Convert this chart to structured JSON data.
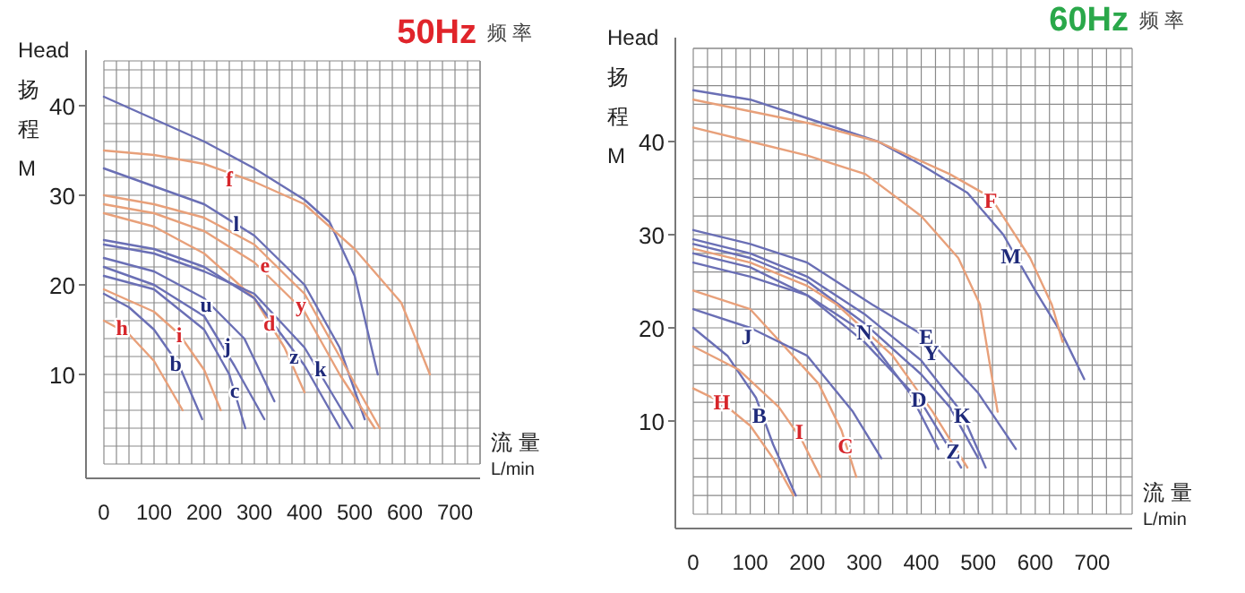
{
  "chart_data": [
    {
      "type": "line",
      "title": "50Hz",
      "subtitle": "频 率",
      "ylabel": "Head\n扬程\nM",
      "xlabel": "流 量\nL/min",
      "xlim": [
        0,
        750
      ],
      "ylim": [
        0,
        45
      ],
      "xticks": [
        0,
        100,
        200,
        300,
        400,
        500,
        600,
        700
      ],
      "yticks": [
        10,
        20,
        30,
        40
      ],
      "grid": true,
      "series": [
        {
          "color": "#6a6fb5",
          "x": [
            0,
            100,
            200,
            300,
            400,
            450,
            500,
            546
          ],
          "values": [
            41,
            38.5,
            36,
            33,
            29.5,
            27,
            21,
            10
          ]
        },
        {
          "color": "#e8a07a",
          "x": [
            0,
            100,
            200,
            300,
            400,
            500,
            593,
            650
          ],
          "values": [
            35,
            34.5,
            33.5,
            31.5,
            29,
            24,
            18,
            10
          ]
        },
        {
          "color": "#6a6fb5",
          "x": [
            0,
            100,
            200,
            300,
            400,
            470,
            520
          ],
          "values": [
            33,
            31,
            29,
            25.5,
            20,
            13,
            5
          ]
        },
        {
          "color": "#e8a07a",
          "x": [
            0,
            100,
            200,
            300,
            400,
            480,
            550
          ],
          "values": [
            30,
            29,
            27.5,
            24.5,
            19,
            11,
            4
          ]
        },
        {
          "color": "#e8a07a",
          "x": [
            0,
            100,
            200,
            300,
            400,
            470,
            540
          ],
          "values": [
            29,
            28,
            26,
            22.5,
            17,
            10,
            4
          ]
        },
        {
          "color": "#e8a07a",
          "x": [
            0,
            100,
            200,
            300,
            360,
            400
          ],
          "values": [
            28,
            26.5,
            23.5,
            18.5,
            13,
            8
          ]
        },
        {
          "color": "#6a6fb5",
          "x": [
            0,
            100,
            200,
            300,
            400,
            496
          ],
          "values": [
            24.5,
            23.5,
            21.5,
            19,
            13,
            4
          ]
        },
        {
          "color": "#6a6fb5",
          "x": [
            0,
            100,
            200,
            300,
            400,
            471
          ],
          "values": [
            25,
            24,
            22,
            18.5,
            11,
            4
          ]
        },
        {
          "color": "#6a6fb5",
          "x": [
            0,
            100,
            200,
            280,
            340
          ],
          "values": [
            23,
            21.5,
            18.5,
            14,
            7
          ]
        },
        {
          "color": "#6a6fb5",
          "x": [
            0,
            100,
            200,
            260,
            320
          ],
          "values": [
            22,
            20,
            16.5,
            11,
            5
          ]
        },
        {
          "color": "#6a6fb5",
          "x": [
            0,
            100,
            200,
            250,
            282
          ],
          "values": [
            21,
            19.5,
            15,
            10,
            4
          ]
        },
        {
          "color": "#e8a07a",
          "x": [
            0,
            100,
            150,
            200,
            233
          ],
          "values": [
            19.5,
            17,
            14.5,
            10.5,
            6
          ]
        },
        {
          "color": "#6a6fb5",
          "x": [
            0,
            50,
            100,
            150,
            196
          ],
          "values": [
            19,
            17.5,
            15,
            11,
            5
          ]
        },
        {
          "color": "#e8a07a",
          "x": [
            0,
            50,
            100,
            157
          ],
          "values": [
            16,
            14.5,
            11.5,
            6
          ]
        }
      ],
      "annotations": [
        {
          "text": "f",
          "x": 250,
          "y": 31.8
        },
        {
          "text": "l",
          "x": 264,
          "y": 26.8
        },
        {
          "text": "e",
          "x": 321,
          "y": 22.2
        },
        {
          "text": "u",
          "x": 204,
          "y": 17.8
        },
        {
          "text": "y",
          "x": 393,
          "y": 17.8
        },
        {
          "text": "h",
          "x": 36,
          "y": 15.2
        },
        {
          "text": "i",
          "x": 150,
          "y": 14.4
        },
        {
          "text": "d",
          "x": 330,
          "y": 15.75
        },
        {
          "text": "j",
          "x": 246,
          "y": 13.2
        },
        {
          "text": "b",
          "x": 143,
          "y": 11.2
        },
        {
          "text": "z",
          "x": 379,
          "y": 12
        },
        {
          "text": "k",
          "x": 432,
          "y": 10.6
        },
        {
          "text": "c",
          "x": 261,
          "y": 8.2
        }
      ]
    },
    {
      "type": "line",
      "title": "60Hz",
      "subtitle": "频 率",
      "ylabel": "Head\n扬程\nM",
      "xlabel": "流 量\nL/min",
      "xlim": [
        0,
        770
      ],
      "ylim": [
        0,
        50
      ],
      "xticks": [
        0,
        100,
        200,
        300,
        400,
        500,
        600,
        700
      ],
      "yticks": [
        10,
        20,
        30,
        40
      ],
      "grid": true,
      "series": [
        {
          "color": "#6a6fb5",
          "x": [
            0,
            100,
            200,
            324,
            400,
            481,
            544,
            600,
            650,
            686
          ],
          "values": [
            45.5,
            44.5,
            42.5,
            40,
            37.5,
            34.5,
            30,
            24,
            19,
            14.5
          ]
        },
        {
          "color": "#e8a07a",
          "x": [
            0,
            200,
            324,
            450,
            522,
            591,
            629,
            648
          ],
          "values": [
            44.5,
            42,
            40,
            36.5,
            34,
            27.5,
            22.5,
            18.5
          ]
        },
        {
          "color": "#e8a07a",
          "x": [
            0,
            100,
            200,
            302,
            400,
            465,
            503,
            534
          ],
          "values": [
            41.5,
            40,
            38.5,
            36.5,
            32,
            27.5,
            22.5,
            11
          ]
        },
        {
          "color": "#6a6fb5",
          "x": [
            0,
            100,
            200,
            314,
            409,
            500,
            566
          ],
          "values": [
            30.5,
            29,
            27,
            22.5,
            19,
            13,
            7
          ]
        },
        {
          "color": "#6a6fb5",
          "x": [
            0,
            100,
            200,
            300,
            400,
            470,
            513
          ],
          "values": [
            29.5,
            28,
            25.5,
            21.5,
            16.5,
            11,
            5
          ]
        },
        {
          "color": "#6a6fb5",
          "x": [
            0,
            100,
            200,
            300,
            400,
            450,
            500
          ],
          "values": [
            29,
            27.5,
            25,
            20.5,
            15,
            11.5,
            6
          ]
        },
        {
          "color": "#e8a07a",
          "x": [
            0,
            100,
            200,
            252,
            350,
            420,
            481
          ],
          "values": [
            28.5,
            27,
            24.5,
            22.5,
            17,
            11,
            5
          ]
        },
        {
          "color": "#6a6fb5",
          "x": [
            0,
            100,
            200,
            300,
            400,
            440,
            470
          ],
          "values": [
            28,
            26.5,
            23.5,
            18.5,
            12,
            8,
            5
          ]
        },
        {
          "color": "#6a6fb5",
          "x": [
            0,
            100,
            200,
            300,
            380,
            430
          ],
          "values": [
            27,
            25.5,
            23.5,
            19.5,
            13,
            7
          ]
        },
        {
          "color": "#e8a07a",
          "x": [
            0,
            100,
            220,
            260,
            286
          ],
          "values": [
            24,
            22,
            14,
            9,
            4
          ]
        },
        {
          "color": "#6a6fb5",
          "x": [
            0,
            100,
            200,
            280,
            330
          ],
          "values": [
            22,
            20,
            17,
            11,
            6
          ]
        },
        {
          "color": "#6a6fb5",
          "x": [
            0,
            60,
            110,
            140,
            180
          ],
          "values": [
            20,
            17,
            12.5,
            7.5,
            2
          ]
        },
        {
          "color": "#e8a07a",
          "x": [
            0,
            80,
            150,
            190,
            223
          ],
          "values": [
            18,
            15.5,
            11.5,
            8,
            4
          ]
        },
        {
          "color": "#e8a07a",
          "x": [
            0,
            50,
            100,
            140,
            176
          ],
          "values": [
            13.5,
            12,
            9.5,
            6,
            2
          ]
        }
      ],
      "annotations": [
        {
          "text": "F",
          "x": 522,
          "y": 33.7
        },
        {
          "text": "M",
          "x": 557,
          "y": 27.7
        },
        {
          "text": "E",
          "x": 409,
          "y": 19
        },
        {
          "text": "N",
          "x": 300,
          "y": 19.5
        },
        {
          "text": "J",
          "x": 94,
          "y": 19
        },
        {
          "text": "Y",
          "x": 418,
          "y": 17.3
        },
        {
          "text": "D",
          "x": 396,
          "y": 12.3
        },
        {
          "text": "K",
          "x": 472,
          "y": 10.6
        },
        {
          "text": "Z",
          "x": 456,
          "y": 6.7
        },
        {
          "text": "H",
          "x": 50,
          "y": 12
        },
        {
          "text": "B",
          "x": 116,
          "y": 10.6
        },
        {
          "text": "I",
          "x": 186,
          "y": 8.8
        },
        {
          "text": "C",
          "x": 267,
          "y": 7.3
        }
      ]
    }
  ]
}
